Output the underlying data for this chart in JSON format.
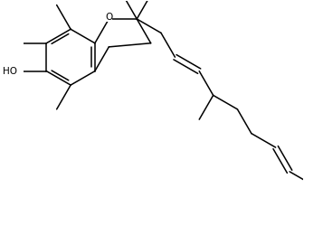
{
  "background_color": "#ffffff",
  "line_color": "#000000",
  "line_width": 1.1,
  "font_size": 7.5,
  "figsize": [
    3.57,
    2.5
  ],
  "dpi": 100,
  "xlim": [
    -0.5,
    9.5
  ],
  "ylim": [
    -5.5,
    2.5
  ]
}
